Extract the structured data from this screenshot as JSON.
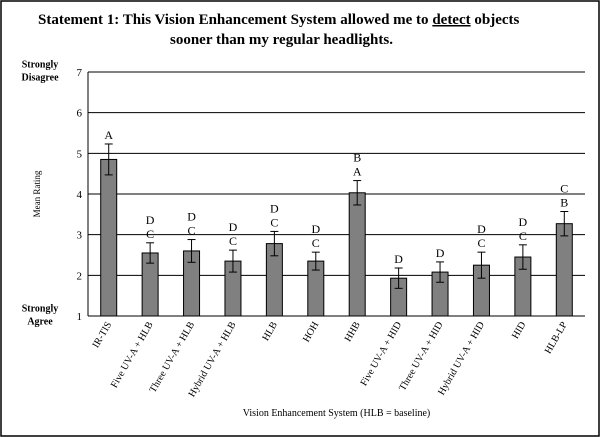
{
  "chart_data": {
    "type": "bar",
    "title_lines": [
      [
        "Statement 1:  This Vision Enhancement System allowed me to ",
        "detect",
        " objects"
      ],
      [
        "sooner than my regular headlights."
      ]
    ],
    "y_label": "Mean Rating",
    "x_label": "Vision Enhancement System (HLB = baseline)",
    "y_end_labels": {
      "top": [
        "Strongly",
        "Disagree"
      ],
      "bottom": [
        "Strongly",
        "Agree"
      ]
    },
    "categories": [
      "IR-TIS",
      "Five UV-A + HLB",
      "Three UV-A + HLB",
      "Hybrid UV-A + HLB",
      "HLB",
      "HOH",
      "HHB",
      "Five UV-A + HID",
      "Three UV-A + HID",
      "Hybrid UV-A + HID",
      "HID",
      "HLB-LP"
    ],
    "values": [
      4.85,
      2.55,
      2.6,
      2.35,
      2.78,
      2.35,
      4.03,
      1.93,
      2.08,
      2.25,
      2.45,
      3.27
    ],
    "errors": [
      0.38,
      0.25,
      0.28,
      0.27,
      0.3,
      0.22,
      0.3,
      0.25,
      0.25,
      0.32,
      0.3,
      0.3
    ],
    "group_labels": [
      [
        "A"
      ],
      [
        "D",
        "C"
      ],
      [
        "D",
        "C"
      ],
      [
        "D",
        "C"
      ],
      [
        "D",
        "C"
      ],
      [
        "D",
        "C"
      ],
      [
        "B",
        "A"
      ],
      [
        "D"
      ],
      [
        "D"
      ],
      [
        "D",
        "C"
      ],
      [
        "D",
        "C"
      ],
      [
        "C",
        "B"
      ]
    ],
    "color": "#808080",
    "ylim": [
      1,
      7
    ],
    "yticks": [
      1,
      2,
      3,
      4,
      5,
      6,
      7
    ],
    "grid": true
  }
}
